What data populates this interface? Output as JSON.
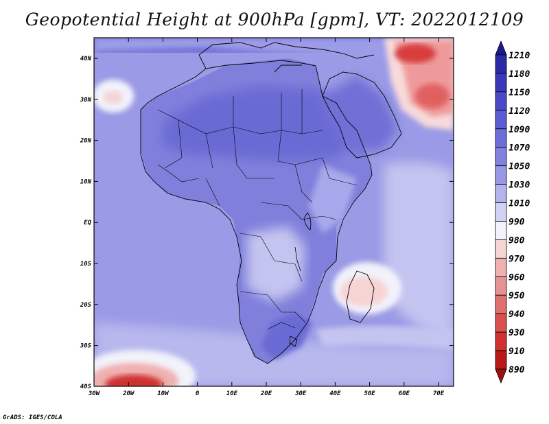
{
  "title": "Geopotential Height at 900hPa [gpm], VT: 2022012109",
  "credit": "GrADS: IGES/COLA",
  "lat_ticks": [
    "40N",
    "30N",
    "20N",
    "10N",
    "EQ",
    "10S",
    "20S",
    "30S",
    "40S"
  ],
  "lon_ticks": [
    "30W",
    "20W",
    "10W",
    "0",
    "10E",
    "20E",
    "30E",
    "40E",
    "50E",
    "60E",
    "70E"
  ],
  "colorbar": {
    "levels": [
      "1210",
      "1180",
      "1150",
      "1120",
      "1090",
      "1070",
      "1050",
      "1030",
      "1010",
      "990",
      "980",
      "970",
      "960",
      "950",
      "940",
      "930",
      "910",
      "890"
    ],
    "colors": [
      "#1a1a8c",
      "#2a2aa8",
      "#3838b8",
      "#4a4ac8",
      "#5c5cd2",
      "#6e6ed8",
      "#8282de",
      "#9898e4",
      "#b4b4ec",
      "#d2d2f4",
      "#f2f2fb",
      "#f6d4d4",
      "#f0b0b0",
      "#e69292",
      "#e07070",
      "#d85050",
      "#d03030",
      "#b81818",
      "#a01010"
    ]
  },
  "field_colors": {
    "ocean": "#9a9ae6",
    "land": "#8080dc",
    "dark_land": "#6a6ad4",
    "light": "#c4c4f0",
    "pale": "#dcdcf6",
    "warm_light": "#f8dada",
    "warm": "#ee9a9a",
    "warm_dark": "#d83c3c",
    "top_band": "#5050c8"
  }
}
